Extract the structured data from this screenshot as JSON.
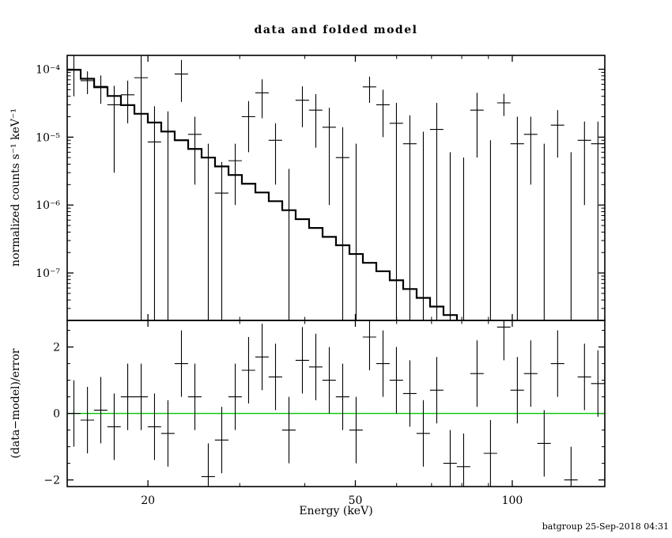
{
  "title": "data and folded model",
  "footer": "batgroup 25-Sep-2018 04:31",
  "colors": {
    "data": "#000000",
    "model": "#000000",
    "zero_line": "#00c800",
    "footer": "#0000c8",
    "background": "#ffffff"
  },
  "axes": {
    "x": {
      "label": "Energy (keV)",
      "scale": "log",
      "min": 14.0,
      "max": 150.5,
      "major_ticks": [
        {
          "value": 20,
          "label": "20"
        },
        {
          "value": 50,
          "label": "50"
        },
        {
          "value": 100,
          "label": "100"
        }
      ],
      "minor_ticks": [
        30,
        40,
        60,
        70,
        80,
        90
      ]
    },
    "y_top": {
      "label": "normalized counts s⁻¹ keV⁻¹",
      "scale": "log",
      "min": 2e-08,
      "max": 0.00016,
      "major_ticks": [
        {
          "value": 0.0001,
          "label": "10⁻⁴"
        },
        {
          "value": 1e-05,
          "label": "10⁻⁵"
        },
        {
          "value": 1e-06,
          "label": "10⁻⁶"
        },
        {
          "value": 1e-07,
          "label": "10⁻⁷"
        }
      ]
    },
    "y_bottom": {
      "label": "(data−model)/error",
      "scale": "linear",
      "min": -2.2,
      "max": 2.8,
      "major_ticks": [
        {
          "value": 2,
          "label": "2"
        },
        {
          "value": 0,
          "label": "0"
        },
        {
          "value": -2,
          "label": "−2"
        }
      ],
      "minor_step": 0.5
    }
  },
  "chart_data": {
    "type": "scatter",
    "title": "data and folded model",
    "xlabel": "Energy (keV)",
    "xscale": "log",
    "xlim": [
      14.0,
      150.5
    ],
    "panel_top": {
      "ylabel": "normalized counts s⁻¹ keV⁻¹",
      "yscale": "log",
      "ylim": [
        2e-08,
        0.00016
      ]
    },
    "panel_bottom": {
      "ylabel": "(data−model)/error",
      "yscale": "linear",
      "ylim": [
        -2.2,
        2.8
      ],
      "zero_line": 0
    },
    "resid_err": 1,
    "model": {
      "type": "step",
      "edges": [
        14.0,
        14.86,
        15.77,
        16.73,
        17.75,
        18.84,
        19.99,
        21.21,
        22.51,
        23.89,
        25.35,
        26.9,
        28.55,
        30.29,
        32.15,
        34.11,
        36.2,
        38.41,
        40.76,
        43.26,
        45.9,
        48.71,
        51.69,
        54.85,
        58.2,
        61.76,
        65.54,
        69.55,
        73.8,
        78.31,
        83.1,
        88.18,
        93.57,
        99.29,
        105.36,
        111.81,
        118.64,
        125.9,
        133.6,
        141.77,
        150.44
      ],
      "values": [
        9.8e-05,
        7.25e-05,
        5.44e-05,
        4.04e-05,
        2.96e-05,
        2.21e-05,
        1.64e-05,
        1.21e-05,
        9e-06,
        6.7e-06,
        5e-06,
        3.7e-06,
        2.77e-06,
        2.06e-06,
        1.53e-06,
        1.14e-06,
        8.4e-07,
        6.2e-07,
        4.6e-07,
        3.4e-07,
        2.56e-07,
        1.9e-07,
        1.41e-07,
        1.06e-07,
        7.8e-08,
        5.8e-08,
        4.3e-08,
        3.2e-08,
        2.4e-08,
        1.78e-08,
        1.3e-08,
        9.8e-09,
        7.2e-09,
        5.4e-09,
        4e-09,
        3e-09,
        2.2e-09,
        1.6e-09,
        1.2e-09,
        9e-10
      ]
    },
    "points": [
      {
        "e": 14.42,
        "ew": 0.43,
        "y": 0.0001,
        "ylo": 4e-05,
        "yhi": 0.00016,
        "r": 0.0
      },
      {
        "e": 15.31,
        "ew": 0.46,
        "y": 6.8e-05,
        "ylo": 4.3e-05,
        "yhi": 9.3e-05,
        "r": -0.2
      },
      {
        "e": 16.24,
        "ew": 0.48,
        "y": 5.6e-05,
        "ylo": 3.1e-05,
        "yhi": 8.1e-05,
        "r": 0.1
      },
      {
        "e": 17.23,
        "ew": 0.51,
        "y": 3e-05,
        "ylo": 3e-06,
        "yhi": 5.7e-05,
        "r": -0.4
      },
      {
        "e": 18.29,
        "ew": 0.55,
        "y": 4.2e-05,
        "ylo": 1.6e-05,
        "yhi": 6.8e-05,
        "r": 0.5
      },
      {
        "e": 19.41,
        "ew": 0.58,
        "y": 7.5e-05,
        "ylo": 1e-09,
        "yhi": 0.00018,
        "r": 0.5
      },
      {
        "e": 20.59,
        "ew": 0.61,
        "y": 8.5e-06,
        "ylo": 1e-09,
        "yhi": 2.85e-05,
        "r": -0.4
      },
      {
        "e": 21.85,
        "ew": 0.65,
        "y": null,
        "ylo": 1e-09,
        "yhi": 2.4e-05,
        "r": -0.6
      },
      {
        "e": 23.19,
        "ew": 0.69,
        "y": 8.5e-05,
        "ylo": 3.3e-05,
        "yhi": 0.000137,
        "r": 1.5
      },
      {
        "e": 24.61,
        "ew": 0.73,
        "y": 1.1e-05,
        "ylo": 2e-06,
        "yhi": 2e-05,
        "r": 0.5
      },
      {
        "e": 26.11,
        "ew": 0.78,
        "y": null,
        "ylo": 1e-09,
        "yhi": 8e-06,
        "r": -1.9
      },
      {
        "e": 27.71,
        "ew": 0.83,
        "y": 1.5e-06,
        "ylo": 1e-09,
        "yhi": 4.3e-06,
        "r": -0.8
      },
      {
        "e": 29.41,
        "ew": 0.87,
        "y": 4.5e-06,
        "ylo": 1e-06,
        "yhi": 8e-06,
        "r": 0.5
      },
      {
        "e": 31.2,
        "ew": 0.93,
        "y": 2e-05,
        "ylo": 6e-06,
        "yhi": 3.4e-05,
        "r": 1.3
      },
      {
        "e": 33.12,
        "ew": 0.98,
        "y": 4.5e-05,
        "ylo": 1.9e-05,
        "yhi": 7.1e-05,
        "r": 1.7
      },
      {
        "e": 35.14,
        "ew": 1.05,
        "y": 9e-06,
        "ylo": 2e-06,
        "yhi": 1.6e-05,
        "r": 1.1
      },
      {
        "e": 37.29,
        "ew": 1.11,
        "y": null,
        "ylo": 1e-09,
        "yhi": 3.4e-06,
        "r": -0.5
      },
      {
        "e": 39.57,
        "ew": 1.18,
        "y": 3.5e-05,
        "ylo": 1.4e-05,
        "yhi": 5.6e-05,
        "r": 1.6
      },
      {
        "e": 41.99,
        "ew": 1.25,
        "y": 2.5e-05,
        "ylo": 7e-06,
        "yhi": 4.3e-05,
        "r": 1.4
      },
      {
        "e": 44.56,
        "ew": 1.32,
        "y": 1.4e-05,
        "ylo": 1e-06,
        "yhi": 2.7e-05,
        "r": 1.0
      },
      {
        "e": 47.28,
        "ew": 1.41,
        "y": 5e-06,
        "ylo": 1e-09,
        "yhi": 1.4e-05,
        "r": 0.5
      },
      {
        "e": 50.17,
        "ew": 1.49,
        "y": null,
        "ylo": 1e-09,
        "yhi": 8e-06,
        "r": -0.5
      },
      {
        "e": 53.24,
        "ew": 1.58,
        "y": 5.5e-05,
        "ylo": 3.2e-05,
        "yhi": 7.8e-05,
        "r": 2.3
      },
      {
        "e": 56.5,
        "ew": 1.68,
        "y": 3e-05,
        "ylo": 1e-05,
        "yhi": 5e-05,
        "r": 1.5
      },
      {
        "e": 59.95,
        "ew": 1.78,
        "y": 1.6e-05,
        "ylo": 1e-09,
        "yhi": 3.2e-05,
        "r": 1.0
      },
      {
        "e": 63.62,
        "ew": 1.89,
        "y": 8e-06,
        "ylo": 1e-09,
        "yhi": 2.1e-05,
        "r": 0.6
      },
      {
        "e": 67.51,
        "ew": 2.01,
        "y": null,
        "ylo": 1e-09,
        "yhi": 1.2e-05,
        "r": -0.6
      },
      {
        "e": 71.64,
        "ew": 2.13,
        "y": 1.3e-05,
        "ylo": 1e-09,
        "yhi": 3.2e-05,
        "r": 0.7
      },
      {
        "e": 76.02,
        "ew": 2.26,
        "y": null,
        "ylo": 1e-09,
        "yhi": 6e-06,
        "r": -1.5
      },
      {
        "e": 80.67,
        "ew": 2.4,
        "y": null,
        "ylo": 1e-09,
        "yhi": 5e-06,
        "r": -1.6
      },
      {
        "e": 85.6,
        "ew": 2.54,
        "y": 2.5e-05,
        "ylo": 5e-06,
        "yhi": 4.5e-05,
        "r": 1.2
      },
      {
        "e": 90.83,
        "ew": 2.7,
        "y": null,
        "ylo": 1e-09,
        "yhi": 9e-06,
        "r": -1.2
      },
      {
        "e": 96.38,
        "ew": 2.86,
        "y": 3.2e-05,
        "ylo": 2.05e-05,
        "yhi": 4.35e-05,
        "r": 2.6
      },
      {
        "e": 102.27,
        "ew": 3.04,
        "y": 8e-06,
        "ylo": 1e-09,
        "yhi": 2e-05,
        "r": 0.7
      },
      {
        "e": 108.52,
        "ew": 3.23,
        "y": 1.1e-05,
        "ylo": 2e-06,
        "yhi": 2e-05,
        "r": 1.2
      },
      {
        "e": 115.15,
        "ew": 3.42,
        "y": null,
        "ylo": 1e-09,
        "yhi": 8e-06,
        "r": -0.9
      },
      {
        "e": 122.19,
        "ew": 3.63,
        "y": 1.5e-05,
        "ylo": 5e-06,
        "yhi": 2.5e-05,
        "r": 1.5
      },
      {
        "e": 129.66,
        "ew": 3.85,
        "y": null,
        "ylo": 1e-09,
        "yhi": 6e-06,
        "r": -2.0
      },
      {
        "e": 137.58,
        "ew": 4.09,
        "y": 9e-06,
        "ylo": 1e-06,
        "yhi": 1.7e-05,
        "r": 1.1
      },
      {
        "e": 146.0,
        "ew": 4.34,
        "y": 8e-06,
        "ylo": 1e-09,
        "yhi": 1.7e-05,
        "r": 0.9
      }
    ]
  }
}
